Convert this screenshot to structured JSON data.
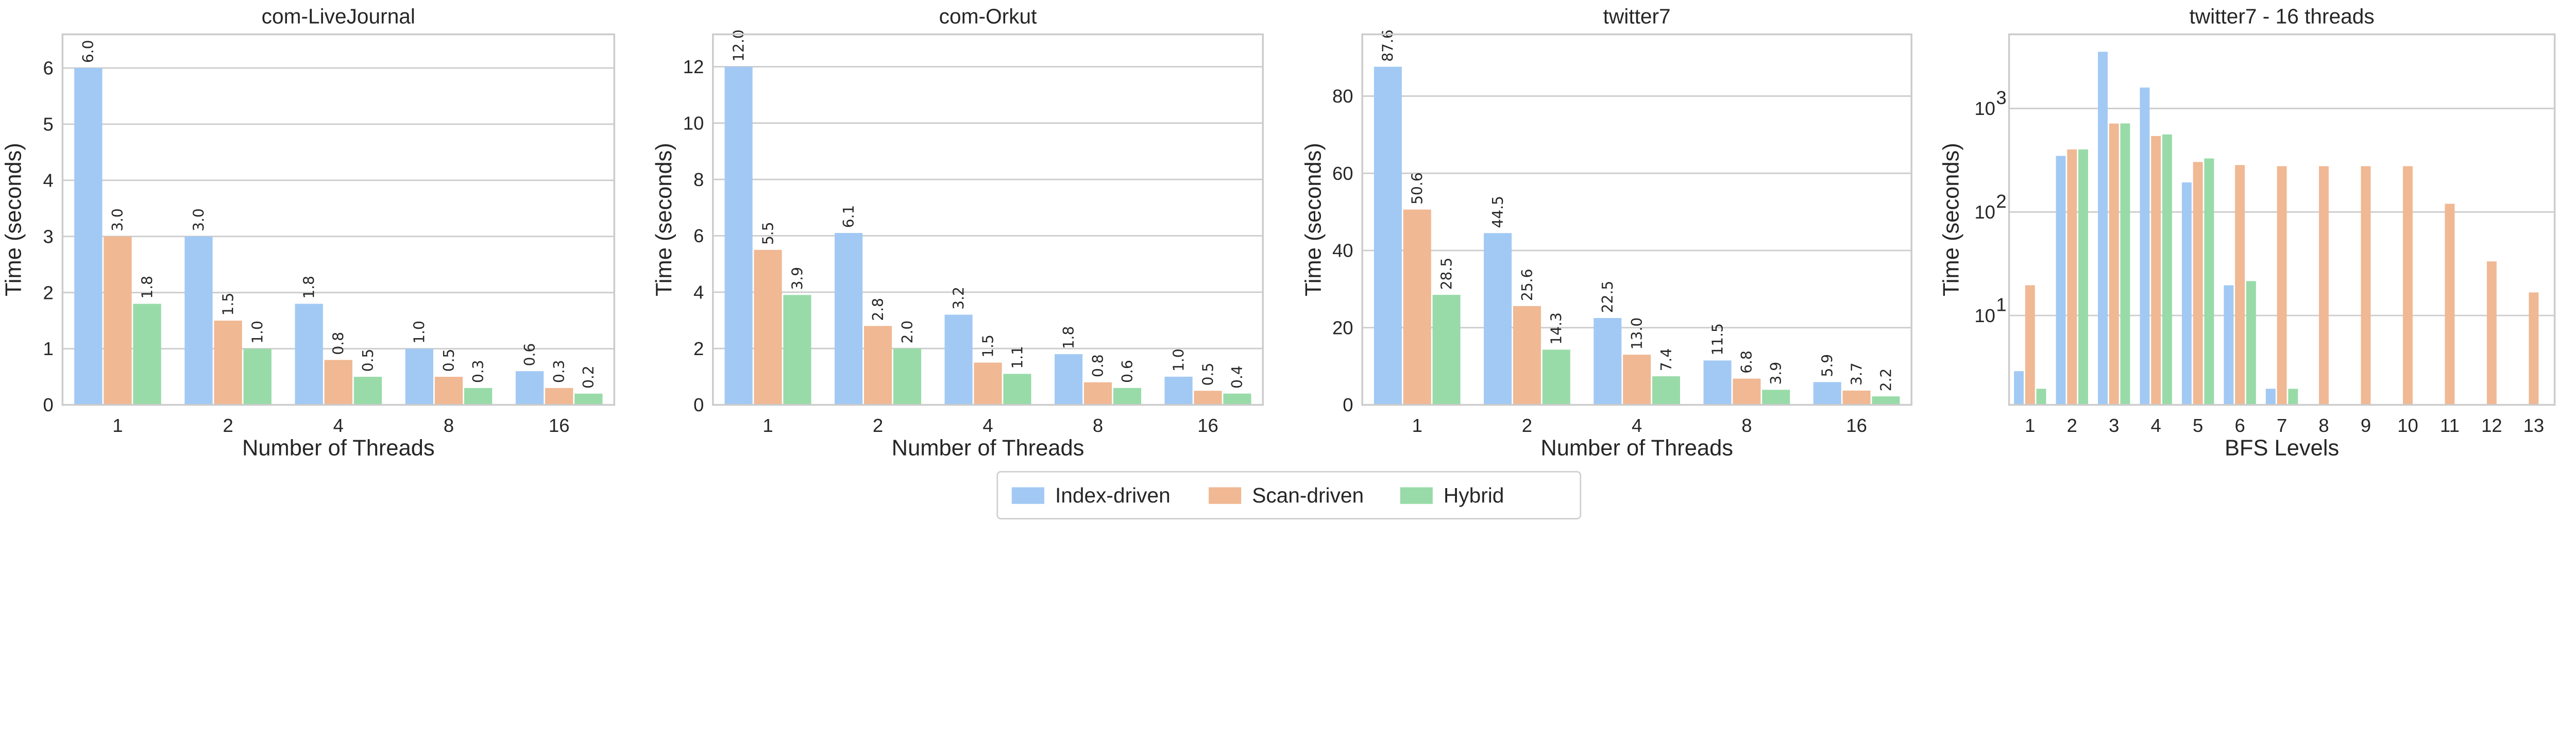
{
  "legend": {
    "entries": [
      "Index-driven",
      "Scan-driven",
      "Hybrid"
    ],
    "placement": "bottom-center"
  },
  "colors": {
    "Index-driven": "#a1c9f4",
    "Scan-driven": "#f0b893",
    "Hybrid": "#98dba8"
  },
  "chart_data": [
    {
      "type": "bar",
      "title": "com-LiveJournal",
      "xlabel": "Number of Threads",
      "ylabel": "Time (seconds)",
      "categories": [
        "1",
        "2",
        "4",
        "8",
        "16"
      ],
      "ylim": [
        0,
        6.6
      ],
      "yticks": [
        0,
        1,
        2,
        3,
        4,
        5,
        6
      ],
      "grid": true,
      "series": [
        {
          "name": "Index-driven",
          "values": [
            6.0,
            3.0,
            1.8,
            1.0,
            0.6
          ],
          "labels": [
            "6.0",
            "3.0",
            "1.8",
            "1.0",
            "0.6"
          ]
        },
        {
          "name": "Scan-driven",
          "values": [
            3.0,
            1.5,
            0.8,
            0.5,
            0.3
          ],
          "labels": [
            "3.0",
            "1.5",
            "0.8",
            "0.5",
            "0.3"
          ]
        },
        {
          "name": "Hybrid",
          "values": [
            1.8,
            1.0,
            0.5,
            0.3,
            0.2
          ],
          "labels": [
            "1.8",
            "1.0",
            "0.5",
            "0.3",
            "0.2"
          ]
        }
      ]
    },
    {
      "type": "bar",
      "title": "com-Orkut",
      "xlabel": "Number of Threads",
      "ylabel": "Time (seconds)",
      "categories": [
        "1",
        "2",
        "4",
        "8",
        "16"
      ],
      "ylim": [
        0,
        13.15
      ],
      "yticks": [
        0,
        2,
        4,
        6,
        8,
        10,
        12
      ],
      "grid": true,
      "series": [
        {
          "name": "Index-driven",
          "values": [
            12.0,
            6.1,
            3.2,
            1.8,
            1.0
          ],
          "labels": [
            "12.0",
            "6.1",
            "3.2",
            "1.8",
            "1.0"
          ]
        },
        {
          "name": "Scan-driven",
          "values": [
            5.5,
            2.8,
            1.5,
            0.8,
            0.5
          ],
          "labels": [
            "5.5",
            "2.8",
            "1.5",
            "0.8",
            "0.5"
          ]
        },
        {
          "name": "Hybrid",
          "values": [
            3.9,
            2.0,
            1.1,
            0.6,
            0.4
          ],
          "labels": [
            "3.9",
            "2.0",
            "1.1",
            "0.6",
            "0.4"
          ]
        }
      ]
    },
    {
      "type": "bar",
      "title": "twitter7",
      "xlabel": "Number of Threads",
      "ylabel": "Time (seconds)",
      "categories": [
        "1",
        "2",
        "4",
        "8",
        "16"
      ],
      "ylim": [
        0,
        96
      ],
      "yticks": [
        0,
        20,
        40,
        60,
        80
      ],
      "grid": true,
      "series": [
        {
          "name": "Index-driven",
          "values": [
            87.6,
            44.5,
            22.5,
            11.5,
            5.9
          ],
          "labels": [
            "87.6",
            "44.5",
            "22.5",
            "11.5",
            "5.9"
          ]
        },
        {
          "name": "Scan-driven",
          "values": [
            50.6,
            25.6,
            13.0,
            6.8,
            3.7
          ],
          "labels": [
            "50.6",
            "25.6",
            "13.0",
            "6.8",
            "3.7"
          ]
        },
        {
          "name": "Hybrid",
          "values": [
            28.5,
            14.3,
            7.4,
            3.9,
            2.2
          ],
          "labels": [
            "28.5",
            "14.3",
            "7.4",
            "3.9",
            "2.2"
          ]
        }
      ]
    },
    {
      "type": "bar",
      "title": "twitter7 - 16 threads",
      "xlabel": "BFS Levels",
      "ylabel": "Time (seconds)",
      "categories": [
        "1",
        "2",
        "3",
        "4",
        "5",
        "6",
        "7",
        "8",
        "9",
        "10",
        "11",
        "12",
        "13"
      ],
      "yscale": "log",
      "ylim": [
        1.37,
        5200
      ],
      "yticks": [
        10,
        100,
        1000
      ],
      "ytick_exponents": [
        "1",
        "2",
        "3"
      ],
      "grid": true,
      "series": [
        {
          "name": "Index-driven",
          "values": [
            2.9,
            348,
            3527,
            1592,
            193,
            19.6,
            1.96,
            null,
            null,
            null,
            null,
            null,
            null
          ]
        },
        {
          "name": "Scan-driven",
          "values": [
            19.6,
            402,
            715,
            542,
            304,
            284,
            277,
            277,
            277,
            277,
            120,
            33.3,
            16.7
          ]
        },
        {
          "name": "Hybrid",
          "values": [
            1.96,
            402,
            717,
            561,
            329,
            21.5,
            1.96,
            null,
            null,
            null,
            null,
            null,
            null
          ]
        }
      ]
    }
  ]
}
